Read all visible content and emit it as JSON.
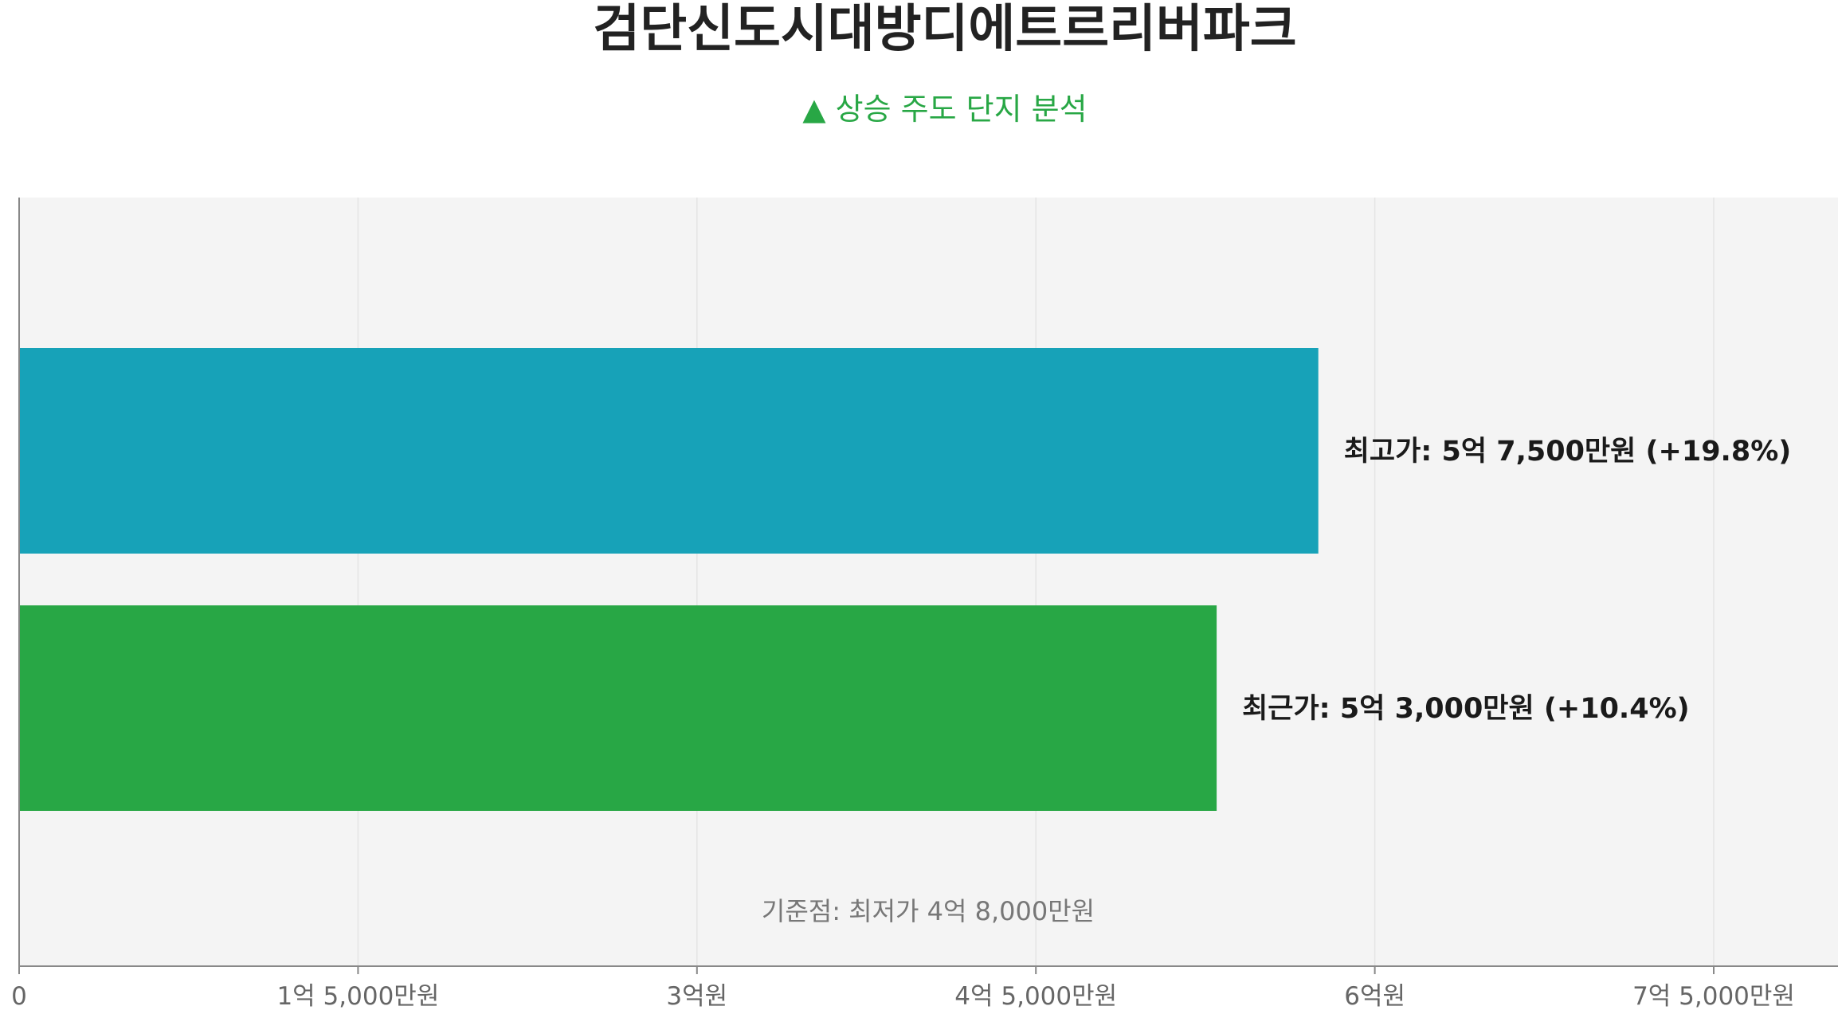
{
  "chart_data": {
    "type": "bar",
    "orientation": "horizontal",
    "title": "검단신도시대방디에트르리버파크",
    "subtitle": "▲ 상승 주도 단지 분석",
    "xlim": [
      0,
      8050000000
    ],
    "x_ticks": [
      {
        "value": 0,
        "label": "0"
      },
      {
        "value": 1500000000,
        "label": "1억 5,000만원"
      },
      {
        "value": 3000000000,
        "label": "3억원"
      },
      {
        "value": 4500000000,
        "label": "4억 5,000만원"
      },
      {
        "value": 6000000000,
        "label": "6억원"
      },
      {
        "value": 7500000000,
        "label": "7억 5,000만원"
      }
    ],
    "bars": [
      {
        "value": 5750000000,
        "label": "최고가: 5억 7,500만원 (+19.8%)",
        "color": "#17a2b8"
      },
      {
        "value": 5300000000,
        "label": "최근가: 5억 3,000만원 (+10.4%)",
        "color": "#28a745"
      }
    ],
    "annotation": "기준점: 최저가 4억 8,000만원",
    "grid": true,
    "colors": {
      "plot_background": "#f4f4f4",
      "gridline": "#e4e4e4",
      "axis": "#888888",
      "subtitle": "#28a745"
    }
  }
}
